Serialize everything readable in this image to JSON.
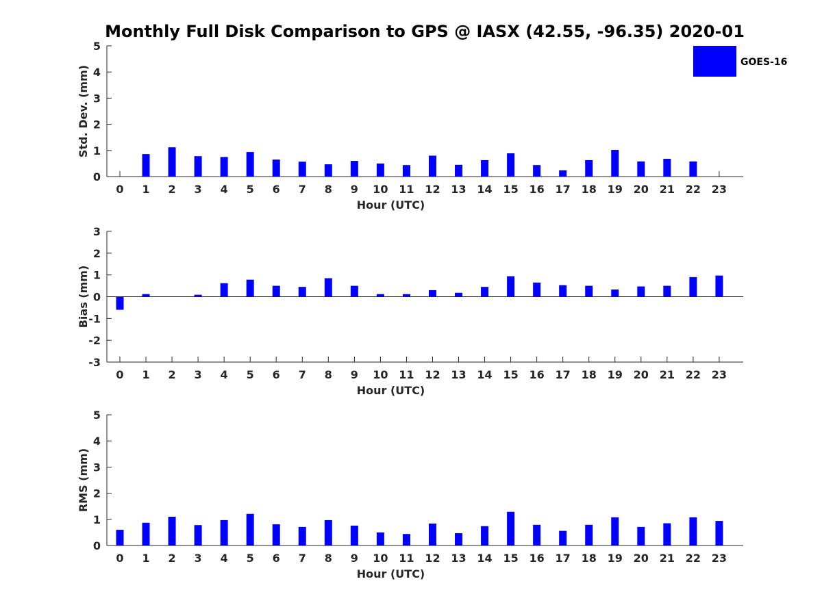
{
  "title": "Monthly Full Disk Comparison to GPS @ IASX (42.55, -96.35) 2020-01",
  "legend": {
    "label": "GOES-16",
    "color": "#0000ff",
    "placement": "top-right"
  },
  "chart_data": [
    {
      "type": "bar",
      "name": "std-dev",
      "categories": [
        "0",
        "1",
        "2",
        "3",
        "4",
        "5",
        "6",
        "7",
        "8",
        "9",
        "10",
        "11",
        "12",
        "13",
        "14",
        "15",
        "16",
        "17",
        "18",
        "19",
        "20",
        "21",
        "22",
        "23"
      ],
      "series": [
        {
          "name": "GOES-16",
          "color": "#0000ff",
          "values": [
            0,
            0.86,
            1.12,
            0.78,
            0.75,
            0.94,
            0.65,
            0.57,
            0.47,
            0.6,
            0.5,
            0.44,
            0.8,
            0.45,
            0.63,
            0.89,
            0.44,
            0.24,
            0.63,
            1.02,
            0.58,
            0.68,
            0.58,
            0
          ]
        }
      ],
      "xlabel": "Hour (UTC)",
      "ylabel": "Std. Dev. (mm)",
      "ylim": [
        0,
        5
      ],
      "yticks": [
        "0",
        "1",
        "2",
        "3",
        "4",
        "5"
      ],
      "grid": false
    },
    {
      "type": "bar",
      "name": "bias",
      "categories": [
        "0",
        "1",
        "2",
        "3",
        "4",
        "5",
        "6",
        "7",
        "8",
        "9",
        "10",
        "11",
        "12",
        "13",
        "14",
        "15",
        "16",
        "17",
        "18",
        "19",
        "20",
        "21",
        "22",
        "23"
      ],
      "series": [
        {
          "name": "GOES-16",
          "color": "#0000ff",
          "values": [
            -0.6,
            0.12,
            0,
            0.09,
            0.62,
            0.78,
            0.5,
            0.45,
            0.85,
            0.5,
            0.12,
            0.12,
            0.3,
            0.18,
            0.45,
            0.94,
            0.65,
            0.53,
            0.5,
            0.33,
            0.47,
            0.5,
            0.9,
            0.97
          ]
        }
      ],
      "xlabel": "Hour (UTC)",
      "ylabel": "Bias (mm)",
      "ylim": [
        -3,
        3
      ],
      "yticks": [
        "-3",
        "-2",
        "-1",
        "0",
        "1",
        "2",
        "3"
      ],
      "grid": false
    },
    {
      "type": "bar",
      "name": "rms",
      "categories": [
        "0",
        "1",
        "2",
        "3",
        "4",
        "5",
        "6",
        "7",
        "8",
        "9",
        "10",
        "11",
        "12",
        "13",
        "14",
        "15",
        "16",
        "17",
        "18",
        "19",
        "20",
        "21",
        "22",
        "23"
      ],
      "series": [
        {
          "name": "GOES-16",
          "color": "#0000ff",
          "values": [
            0.6,
            0.87,
            1.1,
            0.78,
            0.97,
            1.21,
            0.81,
            0.71,
            0.97,
            0.76,
            0.5,
            0.44,
            0.84,
            0.47,
            0.74,
            1.29,
            0.79,
            0.56,
            0.79,
            1.08,
            0.71,
            0.85,
            1.08,
            0.94
          ]
        }
      ],
      "xlabel": "Hour (UTC)",
      "ylabel": "RMS (mm)",
      "ylim": [
        0,
        5
      ],
      "yticks": [
        "0",
        "1",
        "2",
        "3",
        "4",
        "5"
      ],
      "grid": false
    }
  ]
}
